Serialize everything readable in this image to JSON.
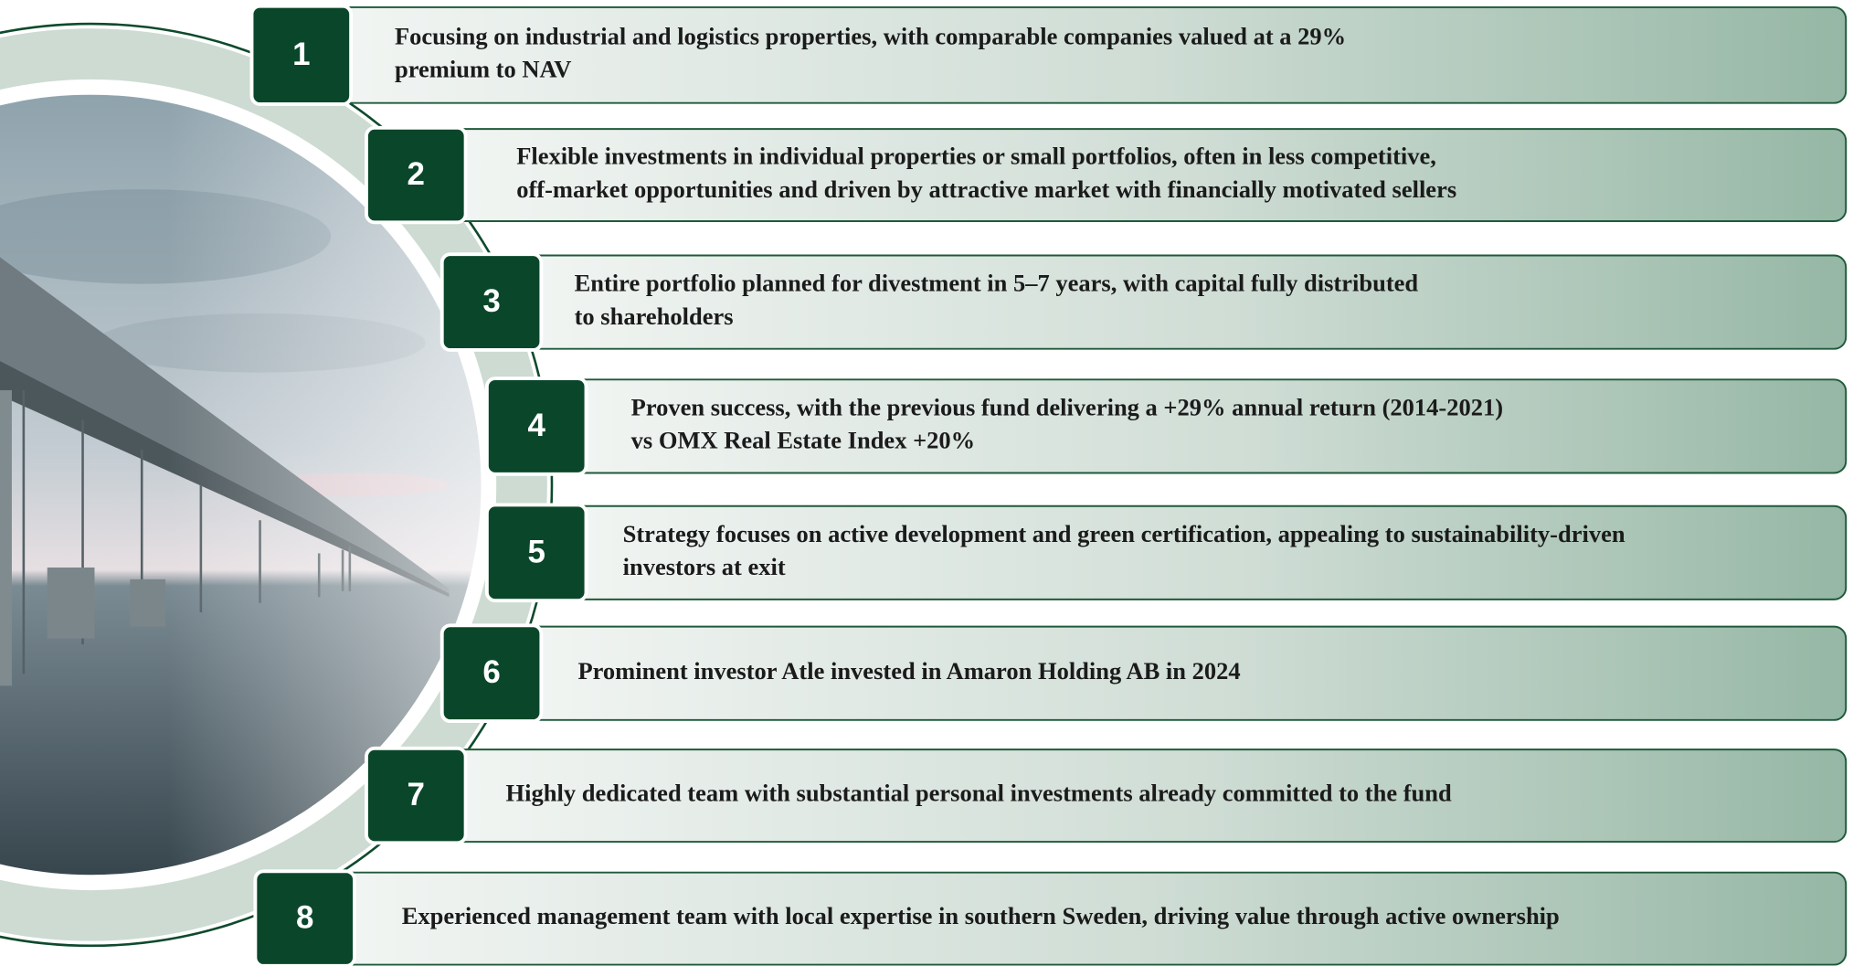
{
  "items": [
    {
      "number": "1",
      "lines": [
        "Focusing on industrial and logistics properties, with comparable companies valued at a 29%",
        "premium to NAV"
      ]
    },
    {
      "number": "2",
      "lines": [
        "Flexible investments in individual properties or small portfolios, often in less competitive,",
        "off-market opportunities and driven by attractive market with financially motivated sellers"
      ]
    },
    {
      "number": "3",
      "lines": [
        "Entire portfolio planned for divestment in 5–7 years, with capital fully distributed",
        "to shareholders"
      ]
    },
    {
      "number": "4",
      "lines": [
        "Proven success, with the previous fund delivering a +29% annual return (2014-2021)",
        "vs OMX Real Estate Index +20%"
      ]
    },
    {
      "number": "5",
      "lines": [
        "Strategy focuses on active development and green certification, appealing to sustainability-driven",
        "investors at exit"
      ]
    },
    {
      "number": "6",
      "lines": [
        "Prominent investor Atle invested in Amaron Holding AB in 2024"
      ]
    },
    {
      "number": "7",
      "lines": [
        "Highly dedicated team with substantial personal investments already committed to the fund"
      ]
    },
    {
      "number": "8",
      "lines": [
        "Experienced management team with local expertise in southern Sweden, driving value through active ownership"
      ]
    }
  ]
}
